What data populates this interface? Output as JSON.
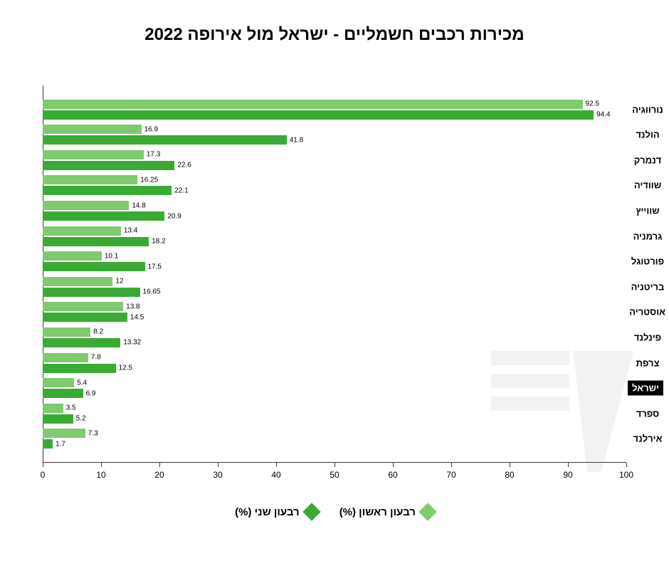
{
  "title": "מכירות רכבים חשמליים - ישראל מול אירופה 2022",
  "title_fontsize": 24,
  "chart": {
    "type": "bar",
    "orientation": "horizontal",
    "xlim": [
      0,
      100
    ],
    "xtick_step": 10,
    "xticks": [
      0,
      10,
      20,
      30,
      40,
      50,
      60,
      70,
      80,
      90,
      100
    ],
    "background_color": "#ffffff",
    "axis_color": "#3a3a3a",
    "bar_label_fontsize": 10,
    "y_label_fontsize": 13,
    "xtick_label_fontsize": 12,
    "series": [
      {
        "name": "q1",
        "label": "רבעון ראשון (%)",
        "color": "#7fc96f"
      },
      {
        "name": "q2",
        "label": "רבעון שני (%)",
        "color": "#3aaa35"
      }
    ],
    "categories": [
      {
        "label": "נורווגיה",
        "q1": 92.5,
        "q2": 94.4,
        "highlighted": false
      },
      {
        "label": "הולנד",
        "q1": 16.9,
        "q2": 41.8,
        "highlighted": false
      },
      {
        "label": "דנמרק",
        "q1": 17.3,
        "q2": 22.6,
        "highlighted": false
      },
      {
        "label": "שוודיה",
        "q1": 16.25,
        "q2": 22.1,
        "highlighted": false
      },
      {
        "label": "שווייץ",
        "q1": 14.8,
        "q2": 20.9,
        "highlighted": false
      },
      {
        "label": "גרמניה",
        "q1": 13.4,
        "q2": 18.2,
        "highlighted": false
      },
      {
        "label": "פורטוגל",
        "q1": 10.1,
        "q2": 17.5,
        "highlighted": false
      },
      {
        "label": "בריטניה",
        "q1": 12,
        "q2": 16.65,
        "highlighted": false
      },
      {
        "label": "אוסטריה",
        "q1": 13.8,
        "q2": 14.5,
        "highlighted": false
      },
      {
        "label": "פינלנד",
        "q1": 8.2,
        "q2": 13.32,
        "highlighted": false
      },
      {
        "label": "צרפת",
        "q1": 7.8,
        "q2": 12.5,
        "highlighted": false
      },
      {
        "label": "ישראל",
        "q1": 5.4,
        "q2": 6.9,
        "highlighted": true
      },
      {
        "label": "ספרד",
        "q1": 3.5,
        "q2": 5.2,
        "highlighted": false
      },
      {
        "label": "אירלנד",
        "q1": 7.3,
        "q2": 1.7,
        "highlighted": false
      }
    ]
  },
  "legend_fontsize": 15,
  "watermark_color": "#666666"
}
